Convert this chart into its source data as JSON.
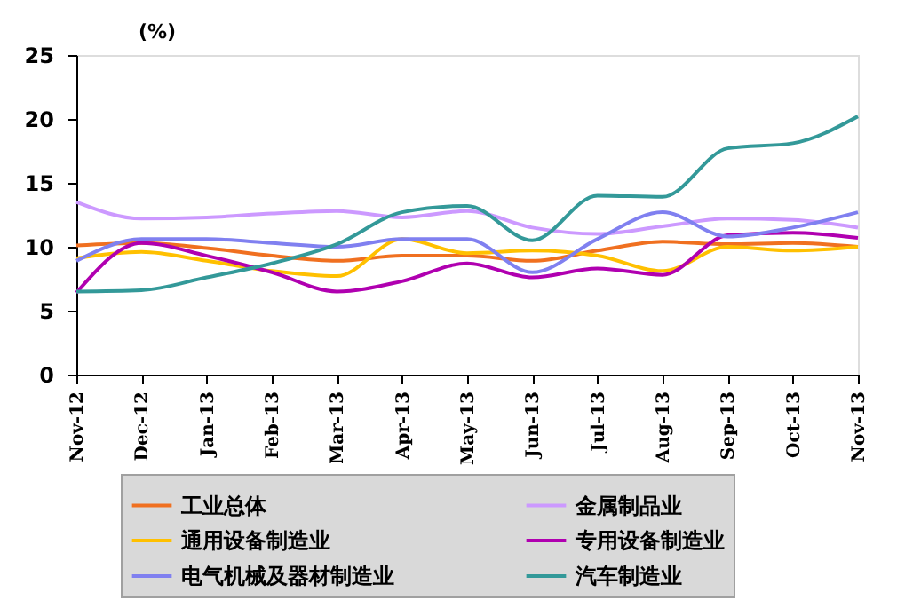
{
  "chart_data": {
    "type": "line",
    "ylabel": "(%)",
    "categories": [
      "Nov-12",
      "Dec-12",
      "Jan-13",
      "Feb-13",
      "Mar-13",
      "Apr-13",
      "May-13",
      "Jun-13",
      "Jul-13",
      "Aug-13",
      "Sep-13",
      "Oct-13",
      "Nov-13"
    ],
    "ylim": [
      0,
      25
    ],
    "yticks": [
      0,
      5,
      10,
      15,
      20,
      25
    ],
    "grid": false,
    "legend": "bottom",
    "marker": "none",
    "line_style": "solid",
    "series": [
      {
        "name": "工业总体",
        "color": "#f07020",
        "values": [
          10.1,
          10.3,
          9.9,
          9.3,
          8.9,
          9.3,
          9.3,
          8.9,
          9.7,
          10.4,
          10.2,
          10.3,
          10.0
        ]
      },
      {
        "name": "金属制品业",
        "color": "#cc99ff",
        "values": [
          13.5,
          12.2,
          12.3,
          12.6,
          12.8,
          12.3,
          12.8,
          11.5,
          11.0,
          11.6,
          12.2,
          12.1,
          11.5
        ]
      },
      {
        "name": "通用设备制造业",
        "color": "#ffc000",
        "values": [
          9.1,
          9.6,
          8.9,
          8.1,
          7.7,
          10.6,
          9.5,
          9.7,
          9.3,
          8.1,
          10.0,
          9.7,
          10.0
        ]
      },
      {
        "name": "专用设备制造业",
        "color": "#b000b0",
        "values": [
          6.4,
          10.3,
          9.3,
          8.0,
          6.5,
          7.3,
          8.7,
          7.6,
          8.3,
          7.8,
          10.9,
          11.1,
          10.7
        ]
      },
      {
        "name": "电气机械及器材制造业",
        "color": "#8080f0",
        "values": [
          8.9,
          10.6,
          10.6,
          10.3,
          10.0,
          10.6,
          10.6,
          8.0,
          10.6,
          12.7,
          10.8,
          11.5,
          12.7
        ]
      },
      {
        "name": "汽车制造业",
        "color": "#339999",
        "values": [
          6.5,
          6.6,
          7.6,
          8.7,
          10.2,
          12.7,
          13.2,
          10.5,
          14.0,
          13.9,
          17.7,
          18.1,
          20.2
        ]
      }
    ]
  }
}
